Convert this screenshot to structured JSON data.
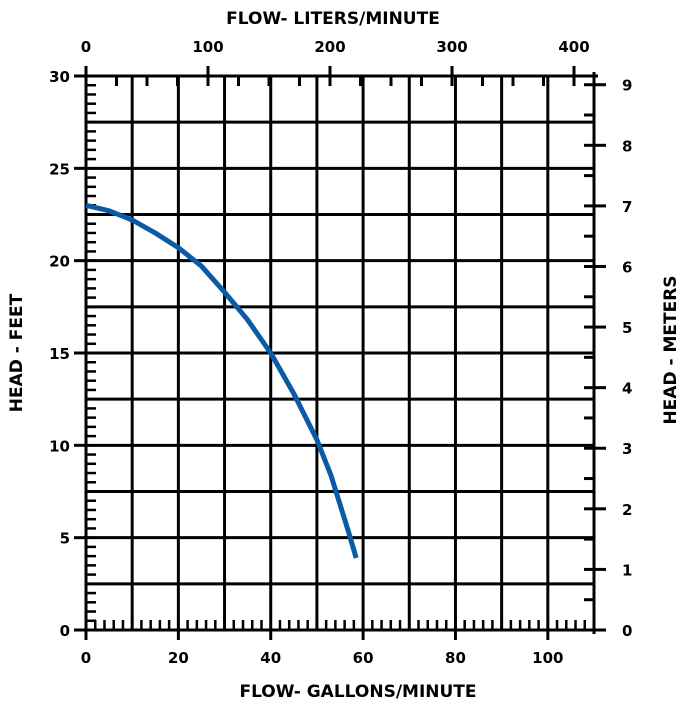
{
  "chart_data": {
    "type": "line",
    "title": "",
    "x_bottom": {
      "label": "FLOW- GALLONS/MINUTE",
      "range": [
        0,
        110
      ],
      "major_ticks": [
        0,
        20,
        40,
        60,
        80,
        100
      ],
      "tick_labels": [
        "0",
        "20",
        "40",
        "60",
        "80",
        "100"
      ],
      "gridline_every": 10,
      "minor_every": 2
    },
    "x_top": {
      "label": "FLOW- LITERS/MINUTE",
      "range": [
        0,
        416.4
      ],
      "major_ticks": [
        0,
        100,
        200,
        300,
        400
      ],
      "tick_labels": [
        "0",
        "100",
        "200",
        "300",
        "400"
      ],
      "minor_every": 25
    },
    "y_left": {
      "label": "HEAD - FEET",
      "range": [
        0,
        30
      ],
      "major_ticks": [
        0,
        5,
        10,
        15,
        20,
        25,
        30
      ],
      "tick_labels": [
        "0",
        "5",
        "10",
        "15",
        "20",
        "25",
        "30"
      ],
      "gridline_every": 2.5,
      "minor_every": 0.5
    },
    "y_right": {
      "label": "HEAD - METERS",
      "range": [
        0,
        9.144
      ],
      "major_ticks": [
        0,
        1,
        2,
        3,
        4,
        5,
        6,
        7,
        8,
        9
      ],
      "tick_labels": [
        "0",
        "1",
        "2",
        "3",
        "4",
        "5",
        "6",
        "7",
        "8",
        "9"
      ],
      "minor_every": 0.5
    },
    "grid": true,
    "series": [
      {
        "name": "",
        "color": "#0b5aa6",
        "x": [
          0,
          5,
          10,
          15,
          20,
          25,
          30,
          35,
          40,
          45,
          50,
          53,
          55,
          57,
          58.5
        ],
        "y": [
          23.0,
          22.7,
          22.2,
          21.5,
          20.7,
          19.7,
          18.3,
          16.8,
          15.0,
          12.8,
          10.3,
          8.4,
          6.8,
          5.2,
          3.9
        ]
      }
    ]
  }
}
